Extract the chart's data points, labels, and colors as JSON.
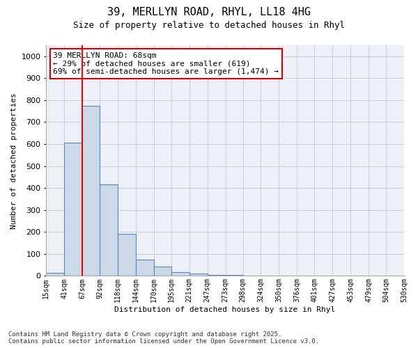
{
  "title_line1": "39, MERLLYN ROAD, RHYL, LL18 4HG",
  "title_line2": "Size of property relative to detached houses in Rhyl",
  "xlabel": "Distribution of detached houses by size in Rhyl",
  "ylabel": "Number of detached properties",
  "bin_labels": [
    "15sqm",
    "41sqm",
    "67sqm",
    "92sqm",
    "118sqm",
    "144sqm",
    "170sqm",
    "195sqm",
    "221sqm",
    "247sqm",
    "273sqm",
    "298sqm",
    "324sqm",
    "350sqm",
    "376sqm",
    "401sqm",
    "427sqm",
    "453sqm",
    "479sqm",
    "504sqm",
    "530sqm"
  ],
  "bin_edges": [
    15,
    41,
    67,
    92,
    118,
    144,
    170,
    195,
    221,
    247,
    273,
    298,
    324,
    350,
    376,
    401,
    427,
    453,
    479,
    504,
    530
  ],
  "bar_heights": [
    15,
    605,
    775,
    415,
    190,
    75,
    42,
    18,
    10,
    5,
    3,
    2,
    1,
    1,
    1,
    0,
    0,
    0,
    0,
    0
  ],
  "bar_facecolor": "#ccd9e8",
  "bar_edgecolor": "#5588bb",
  "grid_color": "#c8c8d0",
  "background_color": "#eef0f8",
  "red_line_x": 67,
  "annotation_text": "39 MERLLYN ROAD: 68sqm\n← 29% of detached houses are smaller (619)\n69% of semi-detached houses are larger (1,474) →",
  "annotation_box_facecolor": "#ffffff",
  "annotation_border_color": "#cc0000",
  "ylim": [
    0,
    1050
  ],
  "yticks": [
    0,
    100,
    200,
    300,
    400,
    500,
    600,
    700,
    800,
    900,
    1000
  ],
  "footer_line1": "Contains HM Land Registry data © Crown copyright and database right 2025.",
  "footer_line2": "Contains public sector information licensed under the Open Government Licence v3.0."
}
